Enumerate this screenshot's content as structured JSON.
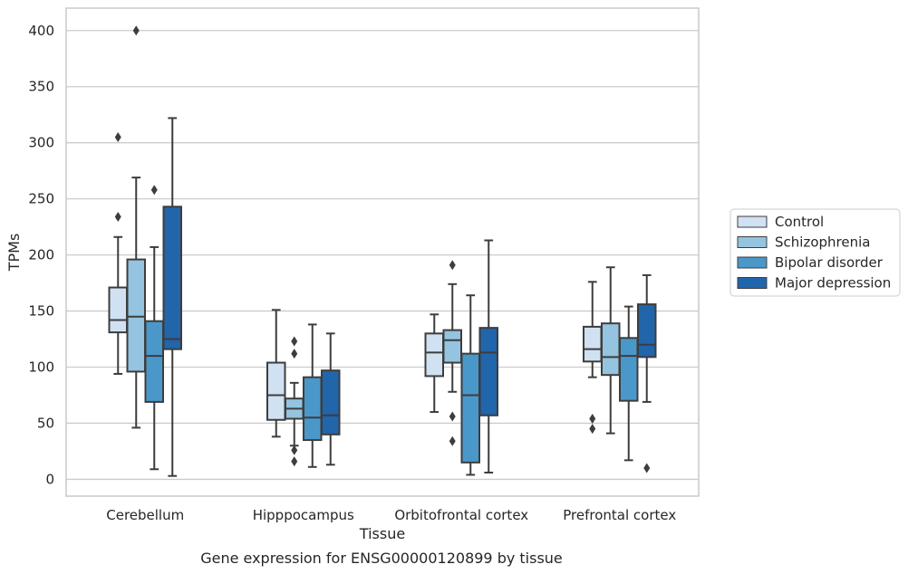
{
  "chart_data": {
    "type": "box",
    "title": "",
    "caption": "Gene expression for ENSG00000120899 by tissue",
    "xlabel": "Tissue",
    "ylabel": "TPMs",
    "ylim": [
      -15,
      420
    ],
    "yticks": [
      0,
      50,
      100,
      150,
      200,
      250,
      300,
      350,
      400
    ],
    "grid": "horizontal",
    "legend_position": "right",
    "categories": [
      "Cerebellum",
      "Hipppocampus",
      "Orbitofrontal cortex",
      "Prefrontal cortex"
    ],
    "series": [
      {
        "name": "Control",
        "color": "#d0e1f2",
        "boxes": [
          {
            "whislo": 94,
            "q1": 131,
            "med": 142,
            "q3": 171,
            "whishi": 216,
            "fliers": [
              234,
              305
            ]
          },
          {
            "whislo": 38,
            "q1": 53,
            "med": 75,
            "q3": 104,
            "whishi": 151,
            "fliers": []
          },
          {
            "whislo": 60,
            "q1": 92,
            "med": 113,
            "q3": 130,
            "whishi": 147,
            "fliers": []
          },
          {
            "whislo": 91,
            "q1": 105,
            "med": 116,
            "q3": 136,
            "whishi": 176,
            "fliers": [
              45,
              54
            ]
          }
        ]
      },
      {
        "name": "Schizophrenia",
        "color": "#94c4df",
        "boxes": [
          {
            "whislo": 46,
            "q1": 96,
            "med": 145,
            "q3": 196,
            "whishi": 269,
            "fliers": [
              400
            ]
          },
          {
            "whislo": 30,
            "q1": 54,
            "med": 63,
            "q3": 72,
            "whishi": 86,
            "fliers": [
              112,
              123,
              26,
              16
            ]
          },
          {
            "whislo": 78,
            "q1": 104,
            "med": 124,
            "q3": 133,
            "whishi": 174,
            "fliers": [
              191,
              56,
              34
            ]
          },
          {
            "whislo": 41,
            "q1": 93,
            "med": 109,
            "q3": 139,
            "whishi": 189,
            "fliers": []
          }
        ]
      },
      {
        "name": "Bipolar disorder",
        "color": "#4a98c9",
        "boxes": [
          {
            "whislo": 9,
            "q1": 69,
            "med": 110,
            "q3": 141,
            "whishi": 207,
            "fliers": [
              258
            ]
          },
          {
            "whislo": 11,
            "q1": 35,
            "med": 55,
            "q3": 91,
            "whishi": 138,
            "fliers": []
          },
          {
            "whislo": 4,
            "q1": 15,
            "med": 75,
            "q3": 112,
            "whishi": 164,
            "fliers": []
          },
          {
            "whislo": 17,
            "q1": 70,
            "med": 110,
            "q3": 126,
            "whishi": 154,
            "fliers": []
          }
        ]
      },
      {
        "name": "Major depression",
        "color": "#2165ab",
        "boxes": [
          {
            "whislo": 3,
            "q1": 116,
            "med": 125,
            "q3": 243,
            "whishi": 322,
            "fliers": []
          },
          {
            "whislo": 13,
            "q1": 40,
            "med": 57,
            "q3": 97,
            "whishi": 130,
            "fliers": []
          },
          {
            "whislo": 6,
            "q1": 57,
            "med": 113,
            "q3": 135,
            "whishi": 213,
            "fliers": []
          },
          {
            "whislo": 69,
            "q1": 109,
            "med": 120,
            "q3": 156,
            "whishi": 182,
            "fliers": [
              10
            ]
          }
        ]
      }
    ]
  }
}
